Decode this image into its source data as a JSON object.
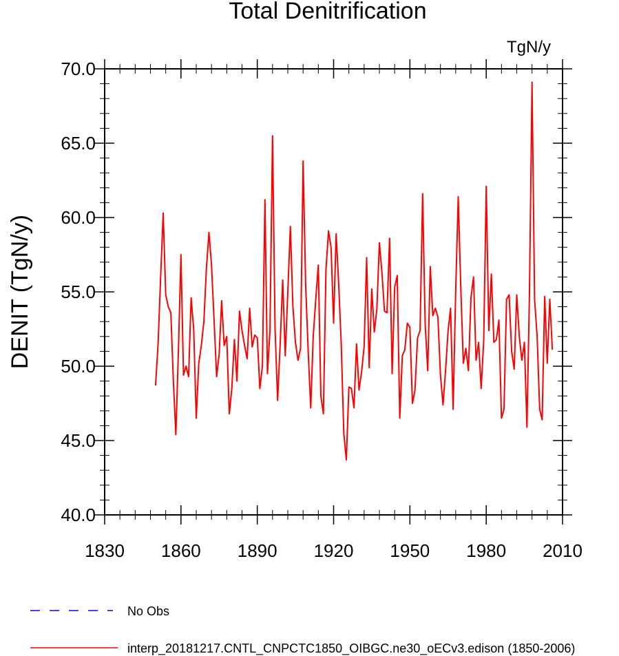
{
  "chart_data": {
    "type": "line",
    "title": "Total Denitrification",
    "units": "TgN/y",
    "ylabel": "DENIT  (TgN/y)",
    "xlabel": "",
    "xlim": [
      1830,
      2010
    ],
    "ylim": [
      40,
      70
    ],
    "xticks": [
      1830,
      1860,
      1890,
      1920,
      1950,
      1980,
      2010
    ],
    "xtick_labels": [
      "1830",
      "1860",
      "1890",
      "1920",
      "1950",
      "1980",
      "2010"
    ],
    "yticks": [
      40,
      45,
      50,
      55,
      60,
      65,
      70
    ],
    "ytick_labels": [
      "40.0",
      "45.0",
      "50.0",
      "55.0",
      "60.0",
      "65.0",
      "70.0"
    ],
    "grid": false,
    "legend_position": "bottom-left",
    "series": [
      {
        "name": "No Obs",
        "color": "#0000ff",
        "style": "dashed",
        "x": [],
        "values": []
      },
      {
        "name": "interp_20181217.CNTL_CNPCTC1850_OIBGC.ne30_oECv3.edison (1850-2006)",
        "color": "#ff0000",
        "style": "solid",
        "x_start": 1850,
        "x_end": 2006,
        "values": [
          48.7,
          51.5,
          56.0,
          60.3,
          54.8,
          54.0,
          53.6,
          49.0,
          45.4,
          51.0,
          57.5,
          49.4,
          50.0,
          49.3,
          54.6,
          52.5,
          46.5,
          50.2,
          51.4,
          53.0,
          56.6,
          59.0,
          56.8,
          53.1,
          49.3,
          50.8,
          54.4,
          51.4,
          52.0,
          46.8,
          48.5,
          51.8,
          49.0,
          53.7,
          52.4,
          51.4,
          50.5,
          53.9,
          51.3,
          52.1,
          51.9,
          48.5,
          50.0,
          61.2,
          49.5,
          52.4,
          65.5,
          52.5,
          47.7,
          51.5,
          55.8,
          50.7,
          55.0,
          59.4,
          54.0,
          51.6,
          50.4,
          51.2,
          63.8,
          55.5,
          51.0,
          47.2,
          52.0,
          54.5,
          56.8,
          48.0,
          46.8,
          56.5,
          59.1,
          58.0,
          52.9,
          58.9,
          55.5,
          51.5,
          45.5,
          43.7,
          48.6,
          48.5,
          47.2,
          51.5,
          48.4,
          49.6,
          51.3,
          57.3,
          49.9,
          55.2,
          52.3,
          53.8,
          58.3,
          56.3,
          53.7,
          53.6,
          58.6,
          49.5,
          55.3,
          56.1,
          46.5,
          50.7,
          51.1,
          52.9,
          52.6,
          47.5,
          48.4,
          51.9,
          52.4,
          61.6,
          52.8,
          49.7,
          56.7,
          53.4,
          53.9,
          53.3,
          49.4,
          47.4,
          49.7,
          52.4,
          53.9,
          47.1,
          55.0,
          61.4,
          55.3,
          50.2,
          51.2,
          49.7,
          54.6,
          56.0,
          50.4,
          51.6,
          48.5,
          51.7,
          62.1,
          52.4,
          56.2,
          51.6,
          51.8,
          53.1,
          46.5,
          47.1,
          54.5,
          54.8,
          51.0,
          49.8,
          54.8,
          52.0,
          50.4,
          51.6,
          45.9,
          55.0,
          69.1,
          54.5,
          52.0,
          47.1,
          46.4,
          54.7,
          50.2,
          54.5,
          51.1
        ]
      }
    ]
  }
}
